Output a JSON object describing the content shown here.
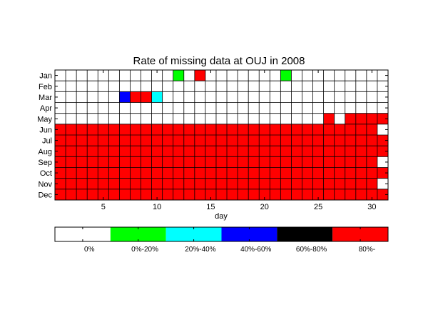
{
  "chart_data": {
    "type": "heatmap",
    "title": "Rate of missing data at OUJ in 2008",
    "xlabel": "day",
    "ylabel": "",
    "x": [
      1,
      2,
      3,
      4,
      5,
      6,
      7,
      8,
      9,
      10,
      11,
      12,
      13,
      14,
      15,
      16,
      17,
      18,
      19,
      20,
      21,
      22,
      23,
      24,
      25,
      26,
      27,
      28,
      29,
      30,
      31
    ],
    "xticks": [
      5,
      10,
      15,
      20,
      25,
      30
    ],
    "xlim": [
      1,
      31
    ],
    "rows": [
      "Jan",
      "Feb",
      "Mar",
      "Apr",
      "May",
      "Jun",
      "Jul",
      "Aug",
      "Sep",
      "Oct",
      "Nov",
      "Dec"
    ],
    "grid": true,
    "colorbar": {
      "categories": [
        "0%",
        "0%-20%",
        "20%-40%",
        "40%-60%",
        "60%-80%",
        "80%-"
      ],
      "colors": [
        "#ffffff",
        "#00ff00",
        "#00ffff",
        "#0000ff",
        "#000000",
        "#ff0000"
      ],
      "placement": "bottom"
    },
    "days_in_month": [
      31,
      29,
      31,
      30,
      31,
      30,
      31,
      31,
      30,
      31,
      30,
      31
    ],
    "values": [
      [
        0,
        0,
        0,
        0,
        0,
        0,
        0,
        0,
        0,
        0,
        0,
        1,
        0,
        5,
        0,
        0,
        0,
        0,
        0,
        0,
        0,
        1,
        0,
        0,
        0,
        0,
        0,
        0,
        0,
        0,
        0
      ],
      [
        0,
        0,
        0,
        0,
        0,
        0,
        0,
        0,
        0,
        0,
        0,
        0,
        0,
        0,
        0,
        0,
        0,
        0,
        0,
        0,
        0,
        0,
        0,
        0,
        0,
        0,
        0,
        0,
        0,
        0,
        0
      ],
      [
        0,
        0,
        0,
        0,
        0,
        0,
        3,
        5,
        5,
        2,
        0,
        0,
        0,
        0,
        0,
        0,
        0,
        0,
        0,
        0,
        0,
        0,
        0,
        0,
        0,
        0,
        0,
        0,
        0,
        0,
        0
      ],
      [
        0,
        0,
        0,
        0,
        0,
        0,
        0,
        0,
        0,
        0,
        0,
        0,
        0,
        0,
        0,
        0,
        0,
        0,
        0,
        0,
        0,
        0,
        0,
        0,
        0,
        0,
        0,
        0,
        0,
        0,
        0
      ],
      [
        0,
        0,
        0,
        0,
        0,
        0,
        0,
        0,
        0,
        0,
        0,
        0,
        0,
        0,
        0,
        0,
        0,
        0,
        0,
        0,
        0,
        0,
        0,
        0,
        0,
        5,
        0,
        5,
        5,
        5,
        5
      ],
      [
        5,
        5,
        5,
        5,
        5,
        5,
        5,
        5,
        5,
        5,
        5,
        5,
        5,
        5,
        5,
        5,
        5,
        5,
        5,
        5,
        5,
        5,
        5,
        5,
        5,
        5,
        5,
        5,
        5,
        5,
        0
      ],
      [
        5,
        5,
        5,
        5,
        5,
        5,
        5,
        5,
        5,
        5,
        5,
        5,
        5,
        5,
        5,
        5,
        5,
        5,
        5,
        5,
        5,
        5,
        5,
        5,
        5,
        5,
        5,
        5,
        5,
        5,
        5
      ],
      [
        5,
        5,
        5,
        5,
        5,
        5,
        5,
        5,
        5,
        5,
        5,
        5,
        5,
        5,
        5,
        5,
        5,
        5,
        5,
        5,
        5,
        5,
        5,
        5,
        5,
        5,
        5,
        5,
        5,
        5,
        5
      ],
      [
        5,
        5,
        5,
        5,
        5,
        5,
        5,
        5,
        5,
        5,
        5,
        5,
        5,
        5,
        5,
        5,
        5,
        5,
        5,
        5,
        5,
        5,
        5,
        5,
        5,
        5,
        5,
        5,
        5,
        5,
        0
      ],
      [
        5,
        5,
        5,
        5,
        5,
        5,
        5,
        5,
        5,
        5,
        5,
        5,
        5,
        5,
        5,
        5,
        5,
        5,
        5,
        5,
        5,
        5,
        5,
        5,
        5,
        5,
        5,
        5,
        5,
        5,
        5
      ],
      [
        5,
        5,
        5,
        5,
        5,
        5,
        5,
        5,
        5,
        5,
        5,
        5,
        5,
        5,
        5,
        5,
        5,
        5,
        5,
        5,
        5,
        5,
        5,
        5,
        5,
        5,
        5,
        5,
        5,
        5,
        0
      ],
      [
        5,
        5,
        5,
        5,
        5,
        5,
        5,
        5,
        5,
        5,
        5,
        5,
        5,
        5,
        5,
        5,
        5,
        5,
        5,
        5,
        5,
        5,
        5,
        5,
        5,
        5,
        5,
        5,
        5,
        5,
        5
      ]
    ]
  }
}
